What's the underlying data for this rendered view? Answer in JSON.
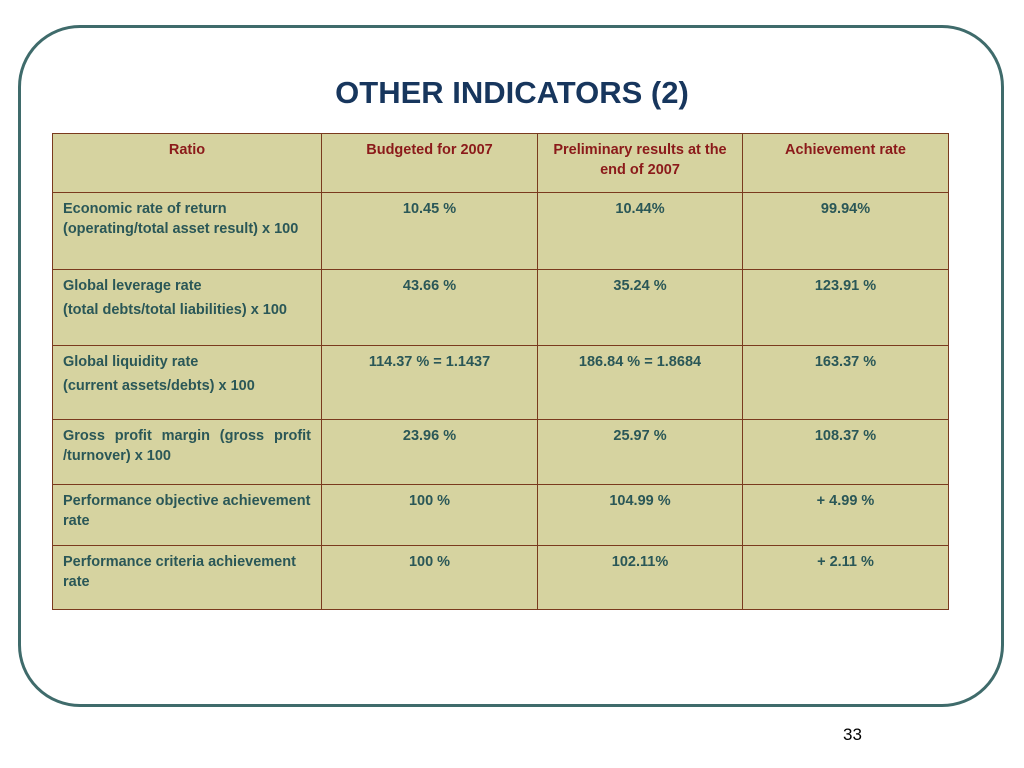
{
  "slide": {
    "title": "OTHER INDICATORS (2)",
    "page_number": "33"
  },
  "table": {
    "headers": {
      "ratio": "Ratio",
      "budgeted": "Budgeted for 2007",
      "preliminary": "Preliminary results at the end of 2007",
      "achievement": "Achievement rate"
    },
    "rows": [
      {
        "ratio_line1": "Economic rate of return (operating/total asset result) x 100",
        "ratio_line2": "",
        "budgeted": "10.45 %",
        "preliminary": "10.44%",
        "achievement": "99.94%"
      },
      {
        "ratio_line1": "Global leverage rate",
        "ratio_line2": "(total debts/total liabilities) x 100",
        "budgeted": "43.66 %",
        "preliminary": "35.24 %",
        "achievement": "123.91 %"
      },
      {
        "ratio_line1": "Global liquidity rate",
        "ratio_line2": "(current assets/debts) x 100",
        "budgeted": "114.37 % = 1.1437",
        "preliminary": "186.84 % = 1.8684",
        "achievement": "163.37 %"
      },
      {
        "ratio_line1": "Gross profit margin (gross profit /turnover)  x 100",
        "ratio_line2": "",
        "budgeted": "23.96 %",
        "preliminary": "25.97 %",
        "achievement": "108.37 %"
      },
      {
        "ratio_line1": "Performance objective achievement rate",
        "ratio_line2": "",
        "budgeted": "100 %",
        "preliminary": "104.99 %",
        "achievement": "+ 4.99 %"
      },
      {
        "ratio_line1": "Performance criteria achievement rate",
        "ratio_line2": "",
        "budgeted": "100 %",
        "preliminary": "102.11%",
        "achievement": "+ 2.11 %"
      }
    ]
  }
}
